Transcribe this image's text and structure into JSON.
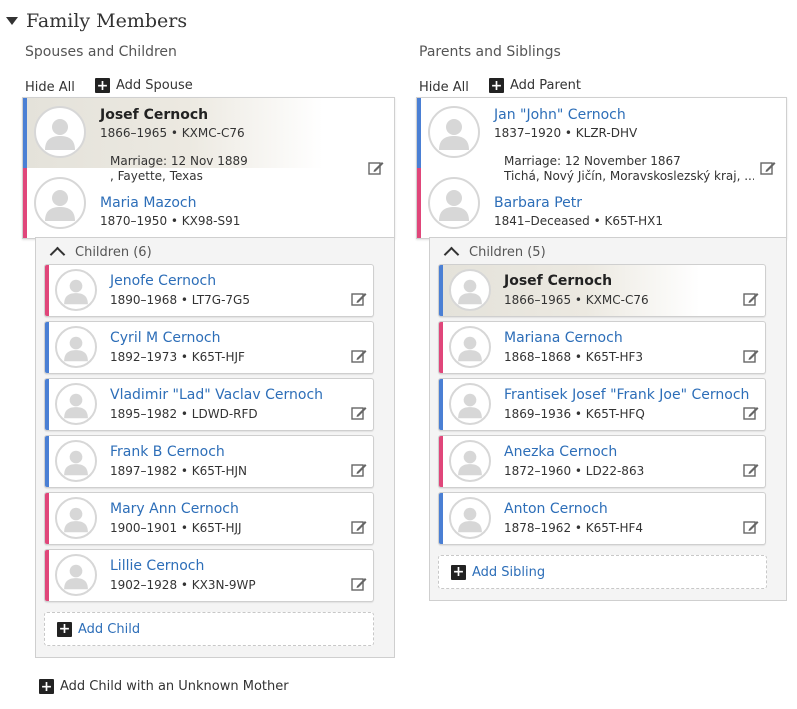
{
  "section": {
    "title": "Family Members"
  },
  "spouses": {
    "title": "Spouses and Children",
    "hide_all": "Hide All",
    "add_label": "Add Spouse",
    "husband": {
      "name": "Josef Cernoch",
      "info": "1866–1965 • KXMC-C76",
      "gender": "male",
      "focus": true
    },
    "marriage": {
      "line1": "Marriage: 12 Nov 1889",
      "line2": ", Fayette, Texas"
    },
    "wife": {
      "name": "Maria Mazoch",
      "info": "1870–1950 • KX98-S91",
      "gender": "female"
    },
    "children_label": "Children (6)",
    "children": [
      {
        "name": "Jenofe Cernoch",
        "info": "1890–1968 • LT7G-7G5",
        "gender": "female"
      },
      {
        "name": "Cyril M Cernoch",
        "info": "1892–1973 • K65T-HJF",
        "gender": "male"
      },
      {
        "name": "Vladimir \"Lad\" Vaclav Cernoch",
        "info": "1895–1982 • LDWD-RFD",
        "gender": "male"
      },
      {
        "name": "Frank B Cernoch",
        "info": "1897–1982 • K65T-HJN",
        "gender": "male"
      },
      {
        "name": "Mary Ann Cernoch",
        "info": "1900–1901 • K65T-HJJ",
        "gender": "female"
      },
      {
        "name": "Lillie Cernoch",
        "info": "1902–1928 • KX3N-9WP",
        "gender": "female"
      }
    ],
    "add_child_label": "Add Child",
    "add_unknown_mother_label": "Add Child with an Unknown Mother"
  },
  "parents": {
    "title": "Parents and Siblings",
    "hide_all": "Hide All",
    "add_label": "Add Parent",
    "father": {
      "name": "Jan \"John\" Cernoch",
      "info": "1837–1920 • KLZR-DHV",
      "gender": "male"
    },
    "marriage": {
      "line1": "Marriage: 12 November 1867",
      "line2": "Tichá, Nový Jičín, Moravskoslezský kraj, ..."
    },
    "mother": {
      "name": "Barbara Petr",
      "info": "1841–Deceased • K65T-HX1",
      "gender": "female"
    },
    "children_label": "Children (5)",
    "children": [
      {
        "name": "Josef Cernoch",
        "info": "1866–1965 • KXMC-C76",
        "gender": "male",
        "focus": true
      },
      {
        "name": "Mariana Cernoch",
        "info": "1868–1868 • K65T-HF3",
        "gender": "female"
      },
      {
        "name": "Frantisek Josef \"Frank Joe\" Cernoch",
        "info": "1869–1936 • K65T-HFQ",
        "gender": "male"
      },
      {
        "name": "Anezka Cernoch",
        "info": "1872–1960 • LD22-863",
        "gender": "female"
      },
      {
        "name": "Anton Cernoch",
        "info": "1878–1962 • K65T-HF4",
        "gender": "male"
      }
    ],
    "add_sibling_label": "Add Sibling"
  },
  "colors": {
    "male": "#4a7fd4",
    "female": "#e0467a",
    "link": "#2d6eb8"
  },
  "icons": {
    "edit": "edit-pencil-icon",
    "add": "plus-square-icon",
    "avatar": "person-silhouette-icon"
  }
}
